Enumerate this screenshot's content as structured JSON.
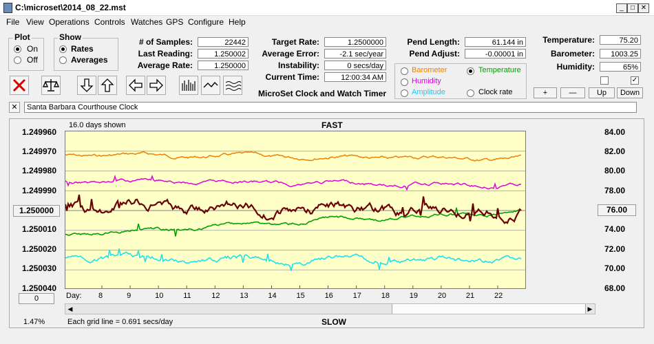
{
  "window": {
    "title": "C:\\microset\\2014_08_22.mst",
    "min": "_",
    "max": "□",
    "close": "✕"
  },
  "menu": [
    "File",
    "View",
    "Operations",
    "Controls",
    "Watches",
    "GPS",
    "Configure",
    "Help"
  ],
  "plot_group": {
    "title": "Plot",
    "on": "On",
    "off": "Off",
    "selected": "On"
  },
  "show_group": {
    "title": "Show",
    "rates": "Rates",
    "averages": "Averages",
    "selected": "Rates"
  },
  "stats": {
    "samples_label": "# of Samples:",
    "samples": "22442",
    "last_label": "Last Reading:",
    "last": "1.250002",
    "avg_label": "Average Rate:",
    "avg": "1.250000",
    "target_label": "Target Rate:",
    "target": "1.2500000",
    "avgerr_label": "Average Error:",
    "avgerr": "-2.1 sec/year",
    "instab_label": "Instability:",
    "instab": "0 secs/day",
    "time_label": "Current Time:",
    "time": "12:00:34 AM",
    "pendlen_label": "Pend Length:",
    "pendlen": "61.144 in",
    "pendadj_label": "Pend Adjust:",
    "pendadj": "-0.00001 in",
    "temp_label": "Temperature:",
    "temp": "75.20",
    "baro_label": "Barometer:",
    "baro": "1003.25",
    "hum_label": "Humidity:",
    "hum": "65%"
  },
  "app_title": "MicroSet Clock and Watch Timer",
  "sensor_options": {
    "barometer": "Barometer",
    "temperature": "Temperature",
    "humidity": "Humidity",
    "amplitude": "Amplitude",
    "clock_rate": "Clock rate",
    "selected": "Temperature"
  },
  "adjust_buttons": {
    "plus": "+",
    "minus": "—",
    "up": "Up",
    "down": "Down"
  },
  "clock_name": "Santa Barbara Courthouse Clock",
  "close_x": "✕",
  "graph": {
    "days_shown": "16.0 days shown",
    "fast": "FAST",
    "slow": "SLOW",
    "left_axis": [
      "1.249960",
      "1.249970",
      "1.249980",
      "1.249990",
      "1.250000",
      "1.250010",
      "1.250020",
      "1.250030",
      "1.250040"
    ],
    "right_axis": [
      "84.00",
      "82.00",
      "80.00",
      "78.00",
      "76.00",
      "74.00",
      "72.00",
      "70.00",
      "68.00"
    ],
    "left_center_btn": "1.250000",
    "right_center_btn": "76.00",
    "bottom_left_btn": "0",
    "day_label": "Day:",
    "days": [
      "8",
      "9",
      "10",
      "11",
      "12",
      "13",
      "14",
      "15",
      "16",
      "17",
      "18",
      "19",
      "20",
      "21",
      "22"
    ],
    "grid_note": "Each grid line = 0.691 secs/day",
    "percent": "1.47%"
  },
  "colors": {
    "plot_bg": "#ffffc8",
    "orange": "#f08000",
    "magenta": "#e000e0",
    "maroon": "#6b0000",
    "green": "#00a000",
    "cyan": "#20e0f0",
    "grid": "#9a9a9a"
  }
}
